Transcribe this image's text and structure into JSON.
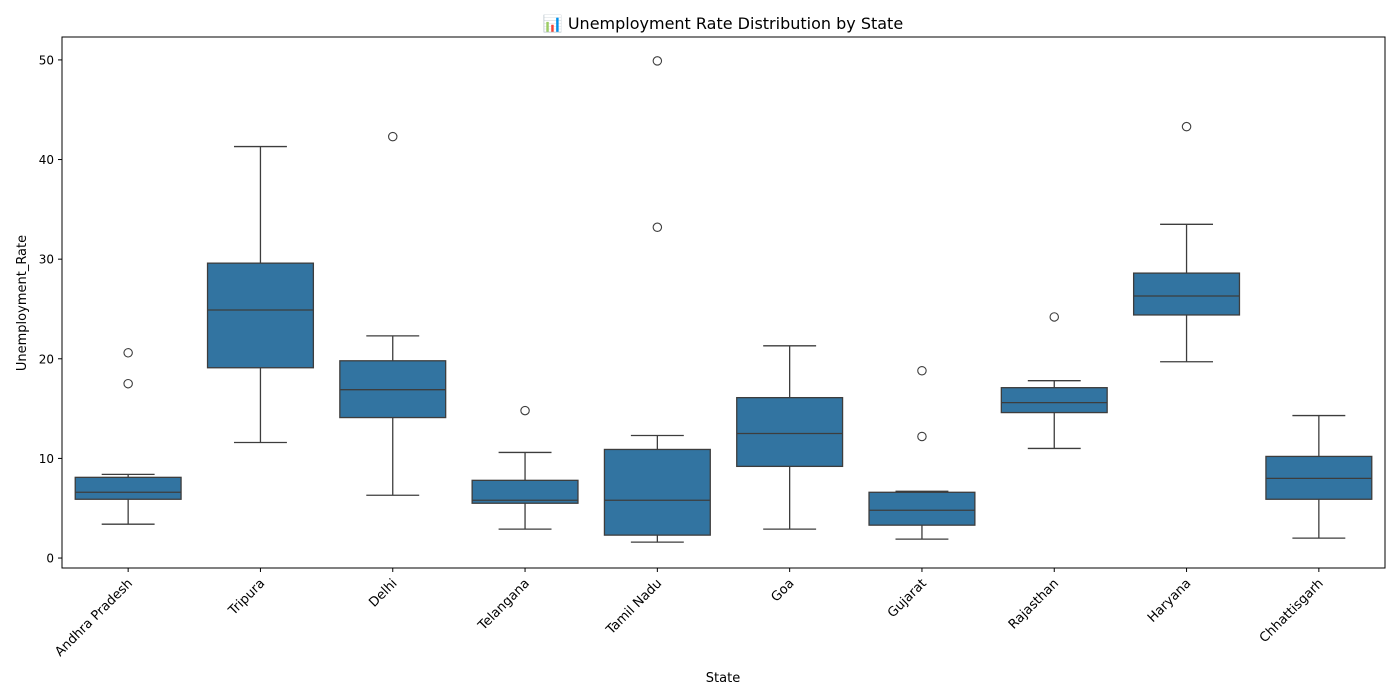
{
  "chart_data": {
    "type": "box",
    "title": "📊 Unemployment Rate Distribution by State",
    "xlabel": "State",
    "ylabel": "Unemployment_Rate",
    "ylim": [
      -1,
      52.3
    ],
    "yticks": [
      0,
      10,
      20,
      30,
      40,
      50
    ],
    "grid": false,
    "colors": {
      "box": "#3274a1",
      "line": "#3d3d3d"
    },
    "categories": [
      "Andhra Pradesh",
      "Tripura",
      "Delhi",
      "Telangana",
      "Tamil Nadu",
      "Goa",
      "Gujarat",
      "Rajasthan",
      "Haryana",
      "Chhattisgarh"
    ],
    "boxes": [
      {
        "state": "Andhra Pradesh",
        "whisker_low": 3.4,
        "q1": 5.9,
        "median": 6.6,
        "q3": 8.1,
        "whisker_high": 8.4,
        "outliers": [
          17.5,
          20.6
        ]
      },
      {
        "state": "Tripura",
        "whisker_low": 11.6,
        "q1": 19.1,
        "median": 24.9,
        "q3": 29.6,
        "whisker_high": 41.3,
        "outliers": []
      },
      {
        "state": "Delhi",
        "whisker_low": 6.3,
        "q1": 14.1,
        "median": 16.9,
        "q3": 19.8,
        "whisker_high": 22.3,
        "outliers": [
          42.3
        ]
      },
      {
        "state": "Telangana",
        "whisker_low": 2.9,
        "q1": 5.5,
        "median": 5.8,
        "q3": 7.8,
        "whisker_high": 10.6,
        "outliers": [
          14.8
        ]
      },
      {
        "state": "Tamil Nadu",
        "whisker_low": 1.6,
        "q1": 2.3,
        "median": 5.8,
        "q3": 10.9,
        "whisker_high": 12.3,
        "outliers": [
          33.2,
          49.9
        ]
      },
      {
        "state": "Goa",
        "whisker_low": 2.9,
        "q1": 9.2,
        "median": 12.5,
        "q3": 16.1,
        "whisker_high": 21.3,
        "outliers": []
      },
      {
        "state": "Gujarat",
        "whisker_low": 1.9,
        "q1": 3.3,
        "median": 4.8,
        "q3": 6.6,
        "whisker_high": 6.7,
        "outliers": [
          12.2,
          18.8
        ]
      },
      {
        "state": "Rajasthan",
        "whisker_low": 11.0,
        "q1": 14.6,
        "median": 15.6,
        "q3": 17.1,
        "whisker_high": 17.8,
        "outliers": [
          24.2
        ]
      },
      {
        "state": "Haryana",
        "whisker_low": 19.7,
        "q1": 24.4,
        "median": 26.3,
        "q3": 28.6,
        "whisker_high": 33.5,
        "outliers": [
          43.3
        ]
      },
      {
        "state": "Chhattisgarh",
        "whisker_low": 2.0,
        "q1": 5.9,
        "median": 8.0,
        "q3": 10.2,
        "whisker_high": 14.3,
        "outliers": []
      }
    ]
  }
}
